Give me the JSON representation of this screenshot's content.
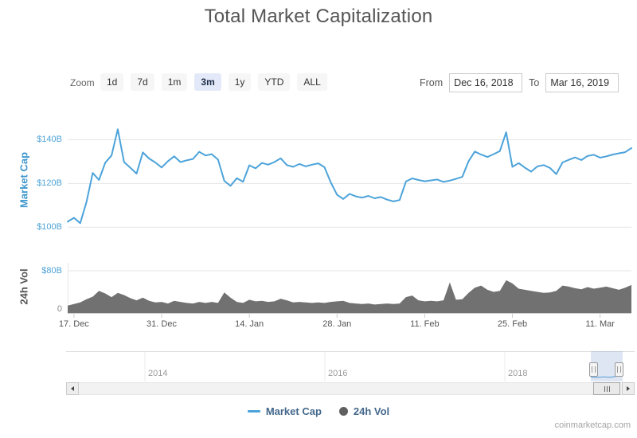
{
  "title": "Total Market Capitalization",
  "watermark": "coinmarketcap.com",
  "toolbar": {
    "zoom_label": "Zoom",
    "zoom_buttons": [
      {
        "label": "1d",
        "selected": false
      },
      {
        "label": "7d",
        "selected": false
      },
      {
        "label": "1m",
        "selected": false
      },
      {
        "label": "3m",
        "selected": true
      },
      {
        "label": "1y",
        "selected": false
      },
      {
        "label": "YTD",
        "selected": false
      },
      {
        "label": "ALL",
        "selected": false
      }
    ],
    "from_label": "From",
    "from_value": "Dec 16, 2018",
    "to_label": "To",
    "to_value": "Mar 16, 2019"
  },
  "legend": [
    {
      "name": "Market Cap",
      "marker": "line"
    },
    {
      "name": "24h Vol",
      "marker": "circle"
    }
  ],
  "colors": {
    "market_cap_line": "#4ca3da",
    "volume_fill": "#717171",
    "axis_label_blue": "#4ea3d6",
    "axis_label_gray": "#888888",
    "x_label_gray": "#555555",
    "legend_text": "#44688c",
    "grid": "#e6e6e6",
    "axis_line": "#cccccc",
    "title_text": "#555555",
    "selected_zoom_bg": "#e3e9f8",
    "navigator_mask": "rgba(108,141,201,0.22)"
  },
  "navigator": {
    "year_labels": [
      "2014",
      "2016",
      "2018"
    ],
    "selected_range": "Dec 16, 2018 - Mar 16, 2019"
  },
  "chart_data": [
    {
      "type": "line",
      "name": "Market Cap",
      "unit": "USD billions",
      "ylabel": "Market Cap",
      "x_start": "Dec 16, 2018",
      "x_end": "Mar 16, 2019",
      "interval": "daily",
      "ylim": [
        95,
        150
      ],
      "yticks": [
        "$100B",
        "$120B",
        "$140B"
      ],
      "ytick_values": [
        100,
        120,
        140
      ],
      "xticks": [
        "17. Dec",
        "31. Dec",
        "14. Jan",
        "28. Jan",
        "11. Feb",
        "25. Feb",
        "11. Mar"
      ],
      "xtick_indices": [
        1,
        15,
        29,
        43,
        57,
        71,
        85
      ],
      "grid": true,
      "legend_position": "bottom",
      "values": [
        102.5,
        104.3,
        101.8,
        111.5,
        124.8,
        121.6,
        129.5,
        132.8,
        144.8,
        129.8,
        127.2,
        124.5,
        134.2,
        131.4,
        129.6,
        127.3,
        130.2,
        132.4,
        129.8,
        130.6,
        131.2,
        134.5,
        132.8,
        133.4,
        130.9,
        121.2,
        118.9,
        122.4,
        120.8,
        128.3,
        126.9,
        129.4,
        128.6,
        129.8,
        131.5,
        128.4,
        127.6,
        128.9,
        127.8,
        128.6,
        129.2,
        127.4,
        120.5,
        114.8,
        112.9,
        115.2,
        114.1,
        113.5,
        114.3,
        113.2,
        113.8,
        112.6,
        111.8,
        112.4,
        120.9,
        122.3,
        121.6,
        121.0,
        121.4,
        121.8,
        120.7,
        121.3,
        122.1,
        123.0,
        130.2,
        134.6,
        133.2,
        132.1,
        133.4,
        134.8,
        143.4,
        127.6,
        129.3,
        127.2,
        125.4,
        127.8,
        128.4,
        127.1,
        124.3,
        129.6,
        130.8,
        131.9,
        130.7,
        132.6,
        133.1,
        131.8,
        132.4,
        133.2,
        133.8,
        134.3,
        136.2
      ]
    },
    {
      "type": "area",
      "name": "24h Vol",
      "unit": "USD billions",
      "ylabel": "24h Vol",
      "x_start": "Dec 16, 2018",
      "x_end": "Mar 16, 2019",
      "interval": "daily",
      "ylim": [
        0,
        95
      ],
      "yticks": [
        "0",
        "$80B"
      ],
      "ytick_values": [
        0,
        80
      ],
      "grid": true,
      "values": [
        14,
        17,
        20,
        26,
        31,
        42,
        37,
        30,
        38,
        34,
        28,
        24,
        29,
        23,
        20,
        21,
        18,
        23,
        21,
        19,
        18,
        21,
        19,
        21,
        19,
        39,
        29,
        21,
        19,
        25,
        22,
        23,
        21,
        22,
        27,
        24,
        20,
        21,
        20,
        19,
        20,
        19,
        21,
        22,
        23,
        19,
        18,
        17,
        18,
        16,
        17,
        18,
        17,
        18,
        30,
        33,
        24,
        22,
        23,
        22,
        24,
        58,
        25,
        26,
        38,
        48,
        52,
        44,
        40,
        42,
        62,
        56,
        46,
        44,
        42,
        40,
        38,
        39,
        42,
        52,
        50,
        47,
        45,
        49,
        46,
        48,
        50,
        47,
        44,
        48,
        53
      ]
    }
  ]
}
